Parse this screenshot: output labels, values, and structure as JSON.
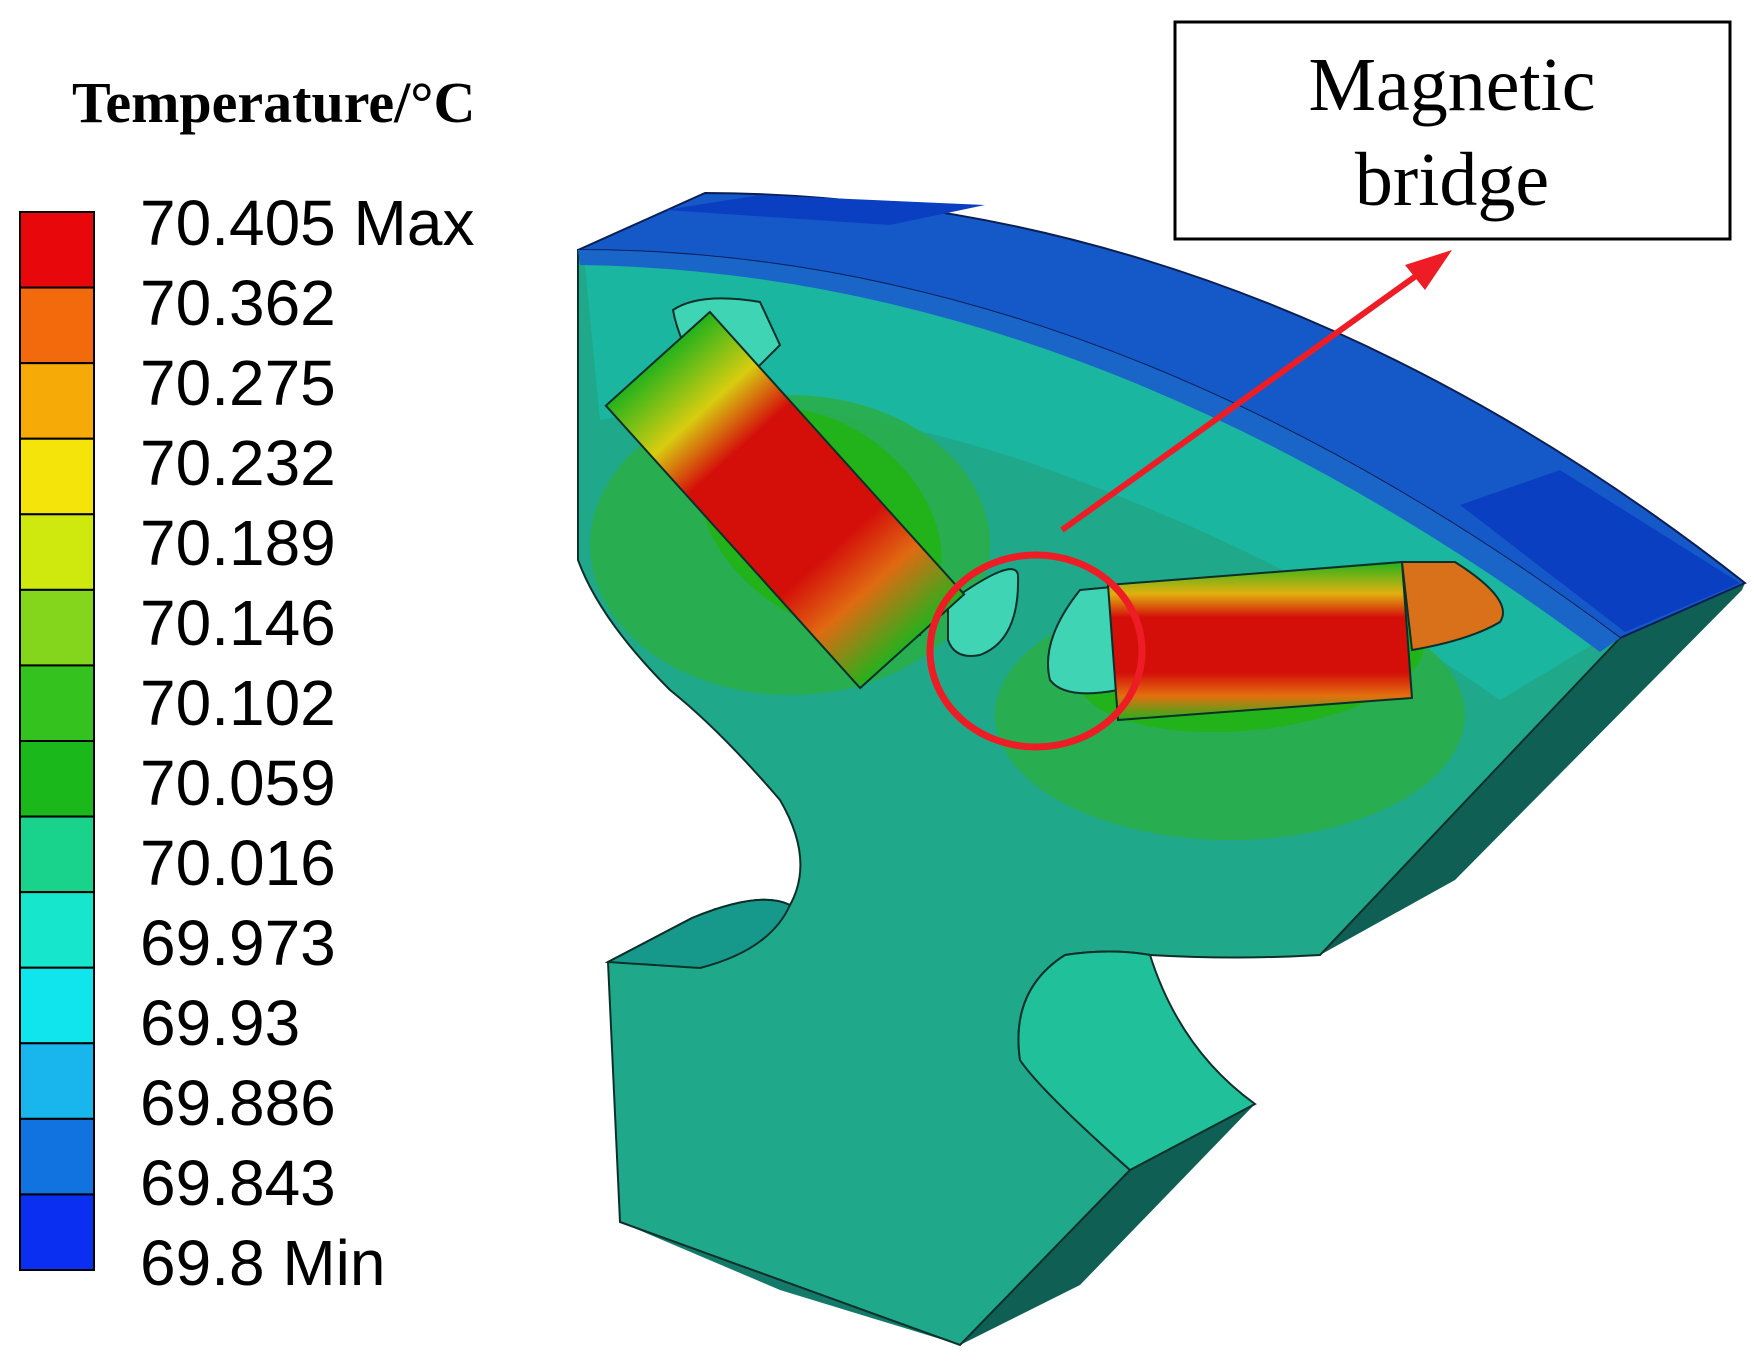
{
  "legend": {
    "title": "Temperature/°C",
    "labels": [
      "70.405 Max",
      "70.362",
      "70.275",
      "70.232",
      "70.189",
      "70.146",
      "70.102",
      "70.059",
      "70.016",
      "69.973",
      "69.93",
      "69.886",
      "69.843",
      "69.8 Min"
    ],
    "colors": [
      "#e8070a",
      "#f26a0c",
      "#f5aa07",
      "#f5e40a",
      "#cfe80d",
      "#84d61c",
      "#33c21e",
      "#1ab81a",
      "#19d38c",
      "#16e6cc",
      "#10e5ee",
      "#18b6ec",
      "#1173e0",
      "#0b2ff0"
    ]
  },
  "callout": {
    "line1": "Magnetic",
    "line2": "bridge"
  },
  "colors": {
    "annotation": "#ee1c25",
    "iron": "#1fa98a",
    "hot": "#d40f0a",
    "sleeve": "#1559c9"
  }
}
